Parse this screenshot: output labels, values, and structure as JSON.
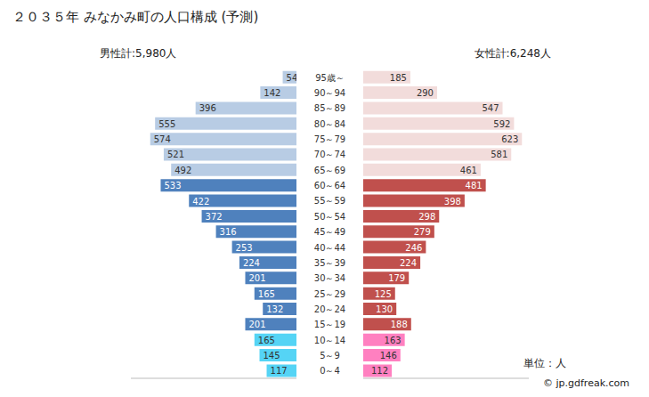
{
  "chart_data": {
    "type": "bar",
    "orientation": "horizontal",
    "title": "２０３５年 みなかみ町の人口構成 (予測)",
    "categories": [
      "95歳～",
      "90～94",
      "85～89",
      "80～84",
      "75～79",
      "70～74",
      "65～69",
      "60～64",
      "55～59",
      "50～54",
      "45～49",
      "40～44",
      "35～39",
      "30～34",
      "25～29",
      "20～24",
      "15～19",
      "10～14",
      "5～9",
      "0～4"
    ],
    "series": [
      {
        "name": "男性計:5,980人",
        "values": [
          54,
          142,
          396,
          555,
          574,
          521,
          492,
          533,
          422,
          372,
          316,
          253,
          224,
          201,
          165,
          132,
          201,
          165,
          145,
          117
        ],
        "colors": [
          "#b8cce4",
          "#b8cce4",
          "#b8cce4",
          "#b8cce4",
          "#b8cce4",
          "#b8cce4",
          "#b8cce4",
          "#4f81bd",
          "#4f81bd",
          "#4f81bd",
          "#4f81bd",
          "#4f81bd",
          "#4f81bd",
          "#4f81bd",
          "#4f81bd",
          "#4f81bd",
          "#4f81bd",
          "#55d4f5",
          "#55d4f5",
          "#55d4f5"
        ]
      },
      {
        "name": "女性計:6,248人",
        "values": [
          185,
          290,
          547,
          592,
          623,
          581,
          461,
          481,
          398,
          298,
          279,
          246,
          224,
          179,
          125,
          130,
          188,
          163,
          146,
          112
        ],
        "colors": [
          "#f2dcdb",
          "#f2dcdb",
          "#f2dcdb",
          "#f2dcdb",
          "#f2dcdb",
          "#f2dcdb",
          "#f2dcdb",
          "#c0504d",
          "#c0504d",
          "#c0504d",
          "#c0504d",
          "#c0504d",
          "#c0504d",
          "#c0504d",
          "#c0504d",
          "#c0504d",
          "#c0504d",
          "#ff80c0",
          "#ff80c0",
          "#ff80c0"
        ]
      }
    ],
    "xlim": [
      0,
      650
    ],
    "tick_labels": false,
    "data_labels": true,
    "annotations": [
      "単位：人",
      "© jp.gdfreak.com"
    ]
  }
}
